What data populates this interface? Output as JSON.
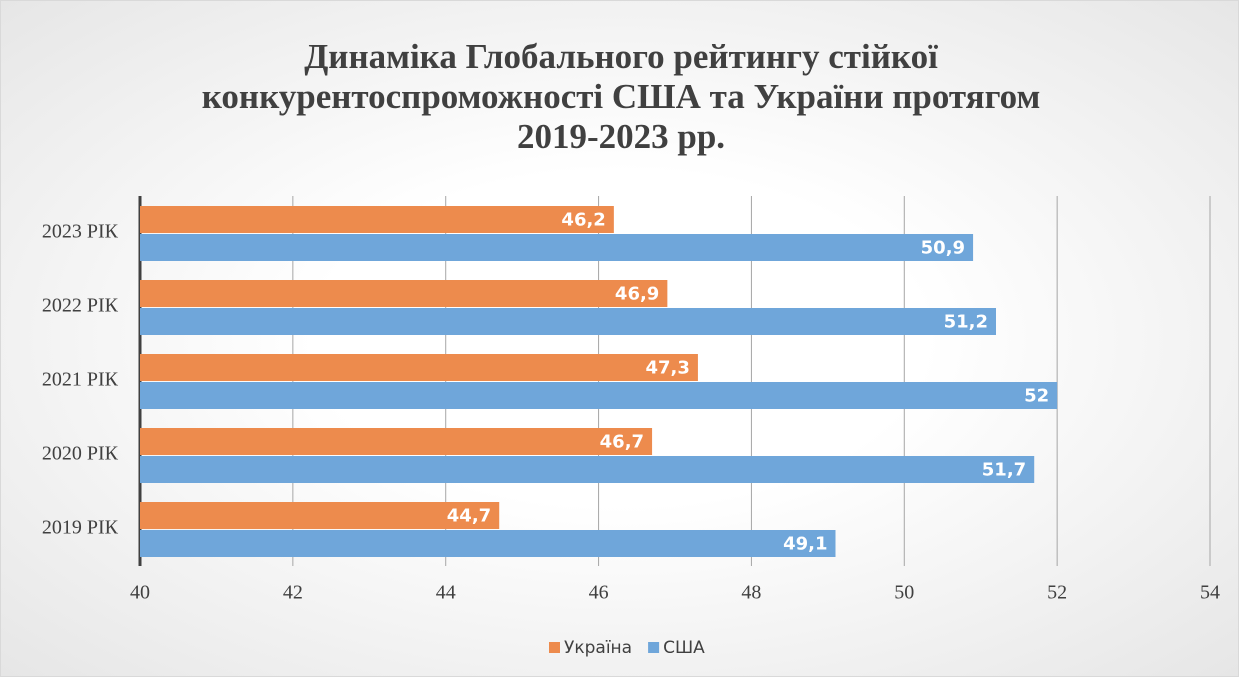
{
  "chart_data": {
    "type": "barh",
    "title": "Динаміка Глобального рейтингу стійкої конкурентоспроможності США та України протягом 2019-2023 рр.",
    "categories": [
      "2023 РІК",
      "2022 РІК",
      "2021 РІК",
      "2020 РІК",
      "2019 РІК"
    ],
    "series": [
      {
        "name": "Україна",
        "color": "#ed8b4d",
        "values": [
          46.2,
          46.9,
          47.3,
          46.7,
          44.7
        ],
        "value_labels": [
          "46,2",
          "46,9",
          "47,3",
          "46,7",
          "44,7"
        ]
      },
      {
        "name": "США",
        "color": "#6fa6da",
        "values": [
          50.9,
          51.2,
          52,
          51.7,
          49.1
        ],
        "value_labels": [
          "50,9",
          "51,2",
          "52",
          "51,7",
          "49,1"
        ]
      }
    ],
    "xlim": [
      40,
      54
    ],
    "xticks": [
      40,
      42,
      44,
      46,
      48,
      50,
      52,
      54
    ],
    "grid": true,
    "legend": "bottom"
  }
}
